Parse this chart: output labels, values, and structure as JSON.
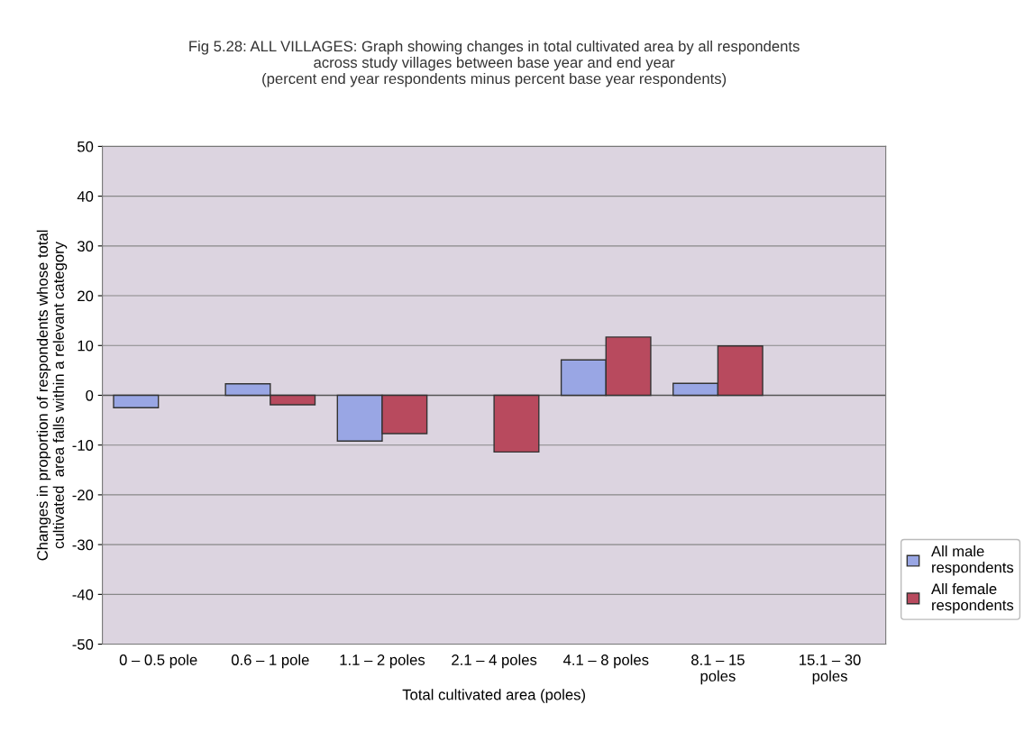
{
  "chart_data": {
    "type": "bar",
    "title": "Fig 5.28: ALL VILLAGES: Graph showing changes in total cultivated area by all respondents\nacross study villages between base year and end year\n(percent end year respondents minus percent base year respondents)",
    "xlabel": "Total cultivated area (poles)",
    "ylabel": "Changes in proportion of respondents whose total\ncultivated  area falls within a relevant category",
    "categories": [
      "0 – 0.5 pole",
      "0.6 – 1 pole",
      "1.1 – 2 poles",
      "2.1 – 4 poles",
      "4.1 – 8 poles",
      "8.1 – 15\npoles",
      "15.1 – 30\npoles"
    ],
    "series": [
      {
        "name": "All male\nrespondents",
        "color": "#99a6e4",
        "values": [
          -2.5,
          2.3,
          -9.2,
          null,
          7.1,
          2.4,
          null
        ]
      },
      {
        "name": "All female\nrespondents",
        "color": "#b84a5e",
        "values": [
          null,
          -1.9,
          -7.7,
          -11.4,
          11.7,
          9.9,
          null
        ]
      }
    ],
    "ylim": [
      -50,
      50
    ],
    "yticks": [
      -50,
      -40,
      -30,
      -20,
      -10,
      0,
      10,
      20,
      30,
      40,
      50
    ],
    "grid": "y",
    "legend": "right"
  }
}
